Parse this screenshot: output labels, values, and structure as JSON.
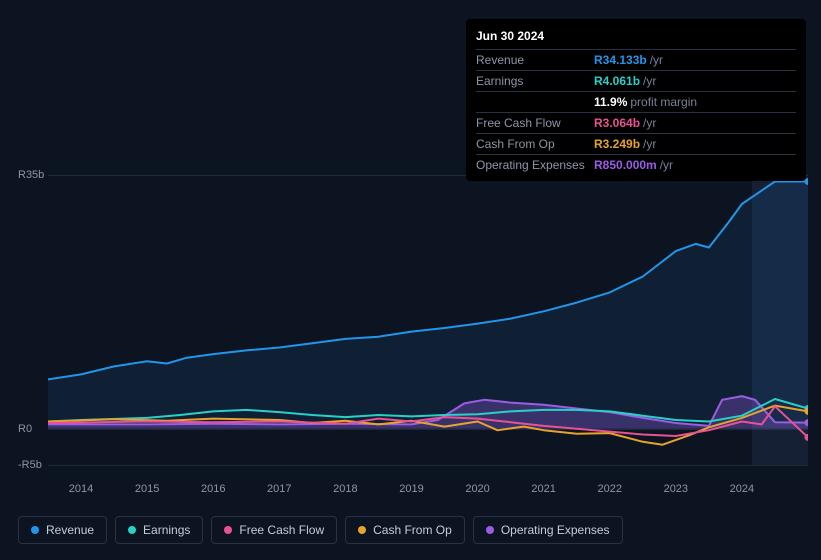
{
  "tooltip": {
    "date": "Jun 30 2024",
    "rows": [
      {
        "label": "Revenue",
        "value": "R34.133b",
        "suffix": "/yr",
        "color": "#2395e8"
      },
      {
        "label": "Earnings",
        "value": "R4.061b",
        "suffix": "/yr",
        "color": "#29d0c7"
      },
      {
        "label": "",
        "value": "11.9%",
        "suffix": "profit margin",
        "color": "#ffffff"
      },
      {
        "label": "Free Cash Flow",
        "value": "R3.064b",
        "suffix": "/yr",
        "color": "#e85294"
      },
      {
        "label": "Cash From Op",
        "value": "R3.249b",
        "suffix": "/yr",
        "color": "#e6a32e"
      },
      {
        "label": "Operating Expenses",
        "value": "R850.000m",
        "suffix": "/yr",
        "color": "#9b5de5"
      }
    ]
  },
  "chart": {
    "type": "line",
    "background_color": "#0d1421",
    "grid_color": "#1f2937",
    "text_color": "#8e95a8",
    "label_fontsize": 11,
    "ylim": [
      -5,
      35
    ],
    "yticks": [
      {
        "v": 35,
        "label": "R35b"
      },
      {
        "v": 0,
        "label": "R0"
      },
      {
        "v": -5,
        "label": "-R5b"
      }
    ],
    "xlim": [
      2013.5,
      2025
    ],
    "xticks": [
      2014,
      2015,
      2016,
      2017,
      2018,
      2019,
      2020,
      2021,
      2022,
      2023,
      2024
    ],
    "highlight_start": 2024.16,
    "series": [
      {
        "name": "Revenue",
        "color": "#2395e8",
        "width": 2,
        "fill": "rgba(35,149,232,0.10)",
        "pts": [
          [
            2013.5,
            6.8
          ],
          [
            2014,
            7.5
          ],
          [
            2014.5,
            8.6
          ],
          [
            2015,
            9.3
          ],
          [
            2015.3,
            9.0
          ],
          [
            2015.6,
            9.8
          ],
          [
            2016,
            10.3
          ],
          [
            2016.5,
            10.8
          ],
          [
            2017,
            11.2
          ],
          [
            2017.5,
            11.8
          ],
          [
            2018,
            12.4
          ],
          [
            2018.5,
            12.7
          ],
          [
            2019,
            13.4
          ],
          [
            2019.5,
            13.9
          ],
          [
            2020,
            14.5
          ],
          [
            2020.5,
            15.2
          ],
          [
            2021,
            16.2
          ],
          [
            2021.5,
            17.4
          ],
          [
            2022,
            18.8
          ],
          [
            2022.5,
            21.0
          ],
          [
            2023,
            24.5
          ],
          [
            2023.3,
            25.5
          ],
          [
            2023.5,
            25.0
          ],
          [
            2023.8,
            28.5
          ],
          [
            2024,
            31.0
          ],
          [
            2024.5,
            34.1
          ],
          [
            2025,
            34.1
          ]
        ]
      },
      {
        "name": "Operating Expenses",
        "color": "#9b5de5",
        "width": 2,
        "fill": "rgba(155,93,229,0.30)",
        "pts": [
          [
            2013.5,
            0.6
          ],
          [
            2015,
            0.6
          ],
          [
            2016,
            0.7
          ],
          [
            2017,
            0.6
          ],
          [
            2018,
            0.7
          ],
          [
            2019,
            0.6
          ],
          [
            2019.4,
            1.2
          ],
          [
            2019.8,
            3.5
          ],
          [
            2020.1,
            4.0
          ],
          [
            2020.5,
            3.6
          ],
          [
            2021,
            3.3
          ],
          [
            2021.5,
            2.8
          ],
          [
            2022,
            2.3
          ],
          [
            2022.5,
            1.5
          ],
          [
            2023,
            0.8
          ],
          [
            2023.5,
            0.4
          ],
          [
            2023.7,
            4.0
          ],
          [
            2024,
            4.5
          ],
          [
            2024.2,
            4.0
          ],
          [
            2024.5,
            0.9
          ],
          [
            2025,
            0.85
          ]
        ]
      },
      {
        "name": "Earnings",
        "color": "#29d0c7",
        "width": 2,
        "pts": [
          [
            2013.5,
            1.0
          ],
          [
            2014,
            1.2
          ],
          [
            2015,
            1.5
          ],
          [
            2015.5,
            1.9
          ],
          [
            2016,
            2.4
          ],
          [
            2016.5,
            2.6
          ],
          [
            2017,
            2.3
          ],
          [
            2017.5,
            1.9
          ],
          [
            2018,
            1.6
          ],
          [
            2018.5,
            1.9
          ],
          [
            2019,
            1.7
          ],
          [
            2019.5,
            1.9
          ],
          [
            2020,
            2.0
          ],
          [
            2020.5,
            2.4
          ],
          [
            2021,
            2.6
          ],
          [
            2021.5,
            2.6
          ],
          [
            2022,
            2.4
          ],
          [
            2022.5,
            1.8
          ],
          [
            2023,
            1.2
          ],
          [
            2023.5,
            1.0
          ],
          [
            2024,
            1.8
          ],
          [
            2024.5,
            4.1
          ],
          [
            2025,
            2.8
          ]
        ]
      },
      {
        "name": "Cash From Op",
        "color": "#e6a32e",
        "width": 2,
        "pts": [
          [
            2013.5,
            1.0
          ],
          [
            2014.5,
            1.3
          ],
          [
            2015.3,
            1.1
          ],
          [
            2016,
            1.4
          ],
          [
            2017,
            1.2
          ],
          [
            2017.5,
            0.8
          ],
          [
            2018,
            1.1
          ],
          [
            2018.5,
            0.6
          ],
          [
            2019,
            1.1
          ],
          [
            2019.5,
            0.3
          ],
          [
            2020,
            1.0
          ],
          [
            2020.3,
            -0.2
          ],
          [
            2020.7,
            0.3
          ],
          [
            2021,
            -0.2
          ],
          [
            2021.5,
            -0.7
          ],
          [
            2022,
            -0.6
          ],
          [
            2022.5,
            -1.8
          ],
          [
            2022.8,
            -2.2
          ],
          [
            2023.2,
            -0.9
          ],
          [
            2023.5,
            0.2
          ],
          [
            2024,
            1.5
          ],
          [
            2024.5,
            3.2
          ],
          [
            2025,
            2.4
          ]
        ]
      },
      {
        "name": "Free Cash Flow",
        "color": "#e85294",
        "width": 2,
        "pts": [
          [
            2013.5,
            0.8
          ],
          [
            2015,
            1.0
          ],
          [
            2016,
            0.9
          ],
          [
            2017,
            1.0
          ],
          [
            2018,
            0.7
          ],
          [
            2018.5,
            1.4
          ],
          [
            2019,
            1.0
          ],
          [
            2019.5,
            1.6
          ],
          [
            2020,
            1.4
          ],
          [
            2020.5,
            0.9
          ],
          [
            2021,
            0.4
          ],
          [
            2021.5,
            0.0
          ],
          [
            2022,
            -0.4
          ],
          [
            2022.5,
            -0.8
          ],
          [
            2023,
            -1.0
          ],
          [
            2023.5,
            -0.2
          ],
          [
            2024,
            1.0
          ],
          [
            2024.3,
            0.6
          ],
          [
            2024.5,
            3.1
          ],
          [
            2025,
            -1.2
          ]
        ]
      }
    ]
  },
  "legend": [
    {
      "name": "Revenue",
      "key": "revenue",
      "color": "#2395e8"
    },
    {
      "name": "Earnings",
      "key": "earnings",
      "color": "#29d0c7"
    },
    {
      "name": "Free Cash Flow",
      "key": "fcf",
      "color": "#e85294"
    },
    {
      "name": "Cash From Op",
      "key": "cfo",
      "color": "#e6a32e"
    },
    {
      "name": "Operating Expenses",
      "key": "opex",
      "color": "#9b5de5"
    }
  ]
}
